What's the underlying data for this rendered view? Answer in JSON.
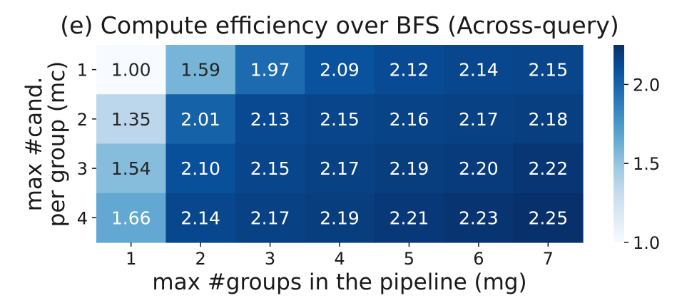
{
  "chart_data": {
    "type": "heatmap",
    "title": "(e) Compute efficiency over BFS (Across-query)",
    "xlabel": "max #groups in the pipeline (mg)",
    "ylabel_lines": [
      "max #cand.",
      "per group (mc)"
    ],
    "x_categories": [
      "1",
      "2",
      "3",
      "4",
      "5",
      "6",
      "7"
    ],
    "y_categories": [
      "1",
      "2",
      "3",
      "4"
    ],
    "values": [
      [
        1.0,
        1.59,
        1.97,
        2.09,
        2.12,
        2.14,
        2.15
      ],
      [
        1.35,
        2.01,
        2.13,
        2.15,
        2.16,
        2.17,
        2.18
      ],
      [
        1.54,
        2.1,
        2.15,
        2.17,
        2.19,
        2.2,
        2.22
      ],
      [
        1.66,
        2.14,
        2.17,
        2.19,
        2.21,
        2.23,
        2.25
      ]
    ],
    "value_labels": [
      [
        "1.00",
        "1.59",
        "1.97",
        "2.09",
        "2.12",
        "2.14",
        "2.15"
      ],
      [
        "1.35",
        "2.01",
        "2.13",
        "2.15",
        "2.16",
        "2.17",
        "2.18"
      ],
      [
        "1.54",
        "2.10",
        "2.15",
        "2.17",
        "2.19",
        "2.20",
        "2.22"
      ],
      [
        "1.66",
        "2.14",
        "2.17",
        "2.19",
        "2.21",
        "2.23",
        "2.25"
      ]
    ],
    "colormap": "Blues",
    "vmin": 1.0,
    "vmax": 2.25,
    "colorbar": {
      "ticks": [
        1.0,
        1.5,
        2.0
      ],
      "tick_labels": [
        "1.0",
        "1.5",
        "2.0"
      ],
      "placement": "right"
    },
    "grid": false
  }
}
